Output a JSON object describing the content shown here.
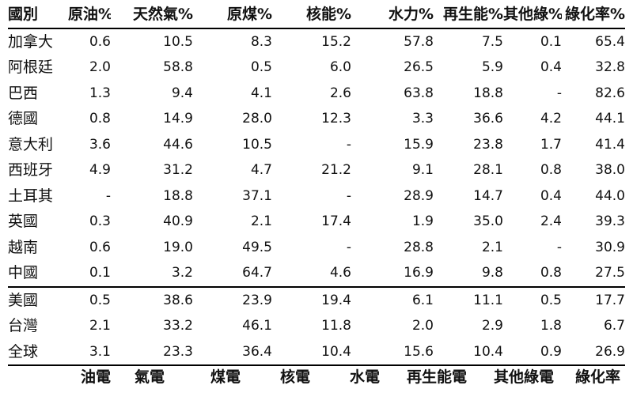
{
  "columns": [
    "國別",
    "原油%",
    "天然氣%",
    "原煤%",
    "核能%",
    "水力%",
    "再生能%",
    "其他綠%",
    "綠化率%"
  ],
  "rows": [
    [
      "加拿大",
      "0.6",
      "10.5",
      "8.3",
      "15.2",
      "57.8",
      "7.5",
      "0.1",
      "65.4"
    ],
    [
      "阿根廷",
      "2.0",
      "58.8",
      "0.5",
      "6.0",
      "26.5",
      "5.9",
      "0.4",
      "32.8"
    ],
    [
      "巴西",
      "1.3",
      "9.4",
      "4.1",
      "2.6",
      "63.8",
      "18.8",
      "-",
      "82.6"
    ],
    [
      "德國",
      "0.8",
      "14.9",
      "28.0",
      "12.3",
      "3.3",
      "36.6",
      "4.2",
      "44.1"
    ],
    [
      "意大利",
      "3.6",
      "44.6",
      "10.5",
      "-",
      "15.9",
      "23.8",
      "1.7",
      "41.4"
    ],
    [
      "西班牙",
      "4.9",
      "31.2",
      "4.7",
      "21.2",
      "9.1",
      "28.1",
      "0.8",
      "38.0"
    ],
    [
      "土耳其",
      "-",
      "18.8",
      "37.1",
      "-",
      "28.9",
      "14.7",
      "0.4",
      "44.0"
    ],
    [
      "英國",
      "0.3",
      "40.9",
      "2.1",
      "17.4",
      "1.9",
      "35.0",
      "2.4",
      "39.3"
    ],
    [
      "越南",
      "0.6",
      "19.0",
      "49.5",
      "-",
      "28.8",
      "2.1",
      "-",
      "30.9"
    ],
    [
      "中國",
      "0.1",
      "3.2",
      "64.7",
      "4.6",
      "16.9",
      "9.8",
      "0.8",
      "27.5"
    ],
    [
      "美國",
      "0.5",
      "38.6",
      "23.9",
      "19.4",
      "6.1",
      "11.1",
      "0.5",
      "17.7"
    ],
    [
      "台灣",
      "2.1",
      "33.2",
      "46.1",
      "11.8",
      "2.0",
      "2.9",
      "1.8",
      "6.7"
    ],
    [
      "全球",
      "3.1",
      "23.3",
      "36.4",
      "10.4",
      "15.6",
      "10.4",
      "0.9",
      "26.9"
    ]
  ],
  "footer": [
    "油電",
    "氣電",
    "煤電",
    "核電",
    "水電",
    "再生能電",
    "其他綠電",
    "綠化率"
  ]
}
